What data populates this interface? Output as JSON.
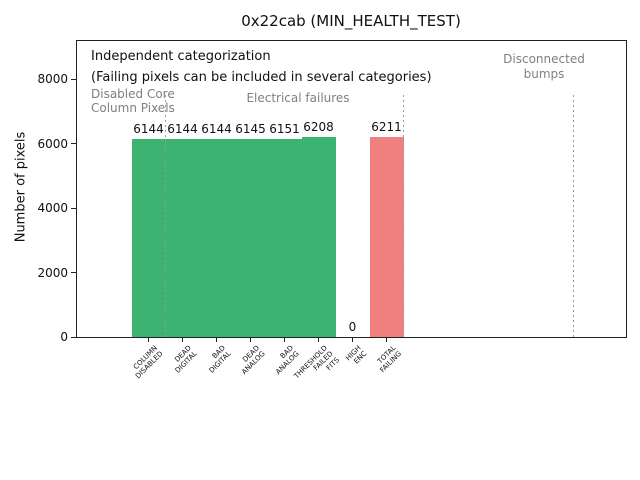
{
  "colors": {
    "bar_green": "#3cb371",
    "bar_red": "#f08080",
    "region_text_gray": "#7f7f7f",
    "separator_gray": "#9a9a9a",
    "axis_black": "#222222"
  },
  "chart_data": {
    "type": "bar",
    "title": "0x22cab (MIN_HEALTH_TEST)",
    "xlabel": "",
    "ylabel": "Number of pixels",
    "categories": [
      "COLUMN\nDISABLED",
      "DEAD\nDIGITAL",
      "BAD\nDIGITAL",
      "DEAD\nANALOG",
      "BAD\nANALOG",
      "THRESHOLD\nFAILED\nFITS",
      "HIGH\nENC",
      "TOTAL\nFAILING"
    ],
    "values": [
      6144,
      6144,
      6144,
      6145,
      6151,
      6208,
      0,
      6211
    ],
    "bar_colors": [
      "#3cb371",
      "#3cb371",
      "#3cb371",
      "#3cb371",
      "#3cb371",
      "#3cb371",
      "#3cb371",
      "#f08080"
    ],
    "value_labels": [
      "6144",
      "6144",
      "6144",
      "6145",
      "6151",
      "6208",
      "0",
      "6211"
    ],
    "yticks": [
      0,
      2000,
      4000,
      6000,
      8000
    ],
    "ylim": [
      0,
      9220
    ],
    "grid": false,
    "legend": null,
    "bar_width_data": 1.0,
    "separators_data_x": [
      0.5,
      7.5,
      12.5
    ],
    "annotations": [
      "Independent categorization",
      "(Failing pixels can be included in several categories)"
    ],
    "region_annotations": [
      "Disabled Core\nColumn Pixels",
      "Electrical failures",
      "Disconnected\nbumps"
    ]
  }
}
